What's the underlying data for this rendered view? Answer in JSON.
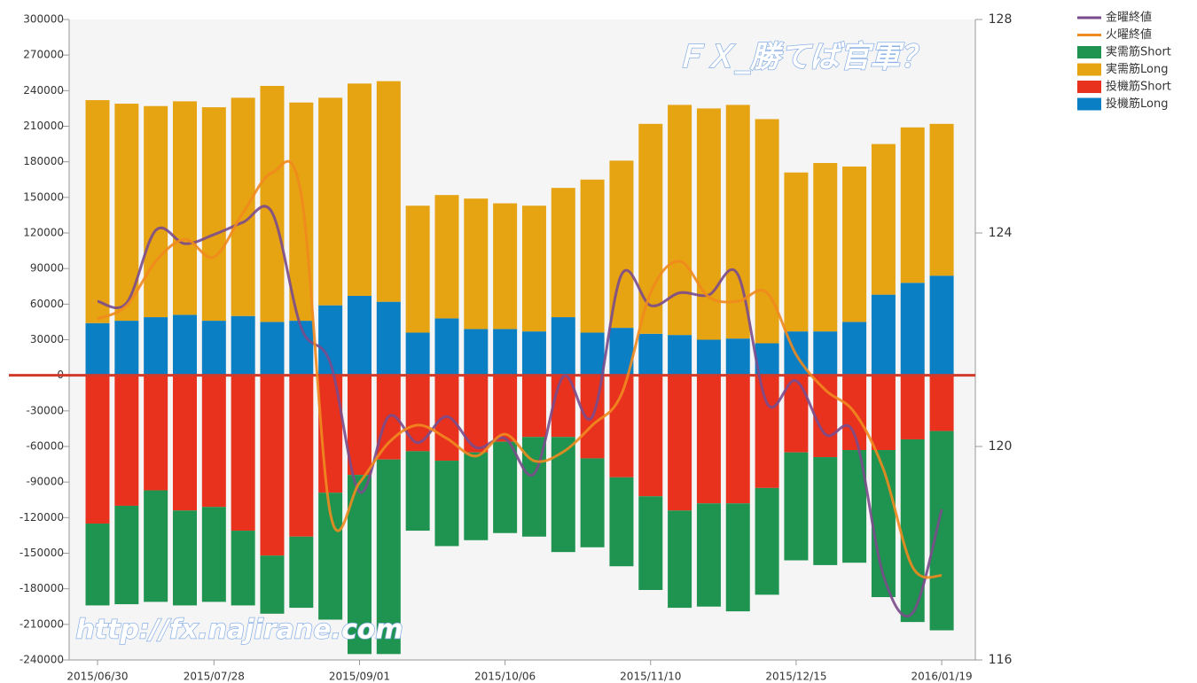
{
  "chart_data": {
    "type": "bar",
    "annotations": [
      "ＦＸ_勝てば官軍？",
      "http://fx.najirane.com"
    ],
    "categories": [
      "2015/06/30",
      null,
      null,
      null,
      "2015/07/28",
      null,
      null,
      null,
      null,
      "2015/09/01",
      null,
      null,
      null,
      null,
      "2015/10/06",
      null,
      null,
      null,
      null,
      "2015/11/10",
      null,
      null,
      null,
      null,
      "2015/12/15",
      null,
      null,
      null,
      null,
      "2016/01/19"
    ],
    "ylim": [
      -240000,
      300000
    ],
    "yticks": [
      -240000,
      -210000,
      -180000,
      -150000,
      -120000,
      -90000,
      -60000,
      -30000,
      0,
      30000,
      60000,
      90000,
      120000,
      150000,
      180000,
      210000,
      240000,
      270000,
      300000
    ],
    "y2lim": [
      116,
      128
    ],
    "y2ticks": [
      116,
      120,
      124,
      128
    ],
    "grid": false,
    "legend": "top-right",
    "series": [
      {
        "name": "金曜終値",
        "type": "line",
        "axis": "y2",
        "color": "#7a4b8c",
        "values": [
          122.72,
          122.69,
          124.05,
          123.8,
          123.97,
          124.2,
          124.38,
          122.22,
          121.56,
          119.15,
          120.56,
          120.07,
          120.56,
          119.98,
          120.15,
          119.49,
          121.31,
          120.56,
          123.22,
          122.64,
          122.88,
          122.84,
          123.22,
          120.81,
          121.23,
          120.23,
          120.23,
          117.58,
          116.88,
          118.82
        ]
      },
      {
        "name": "火曜終値",
        "type": "line",
        "axis": "y2",
        "color": "#f08a1e",
        "values": [
          122.39,
          122.64,
          123.47,
          123.88,
          123.55,
          124.38,
          125.13,
          124.71,
          118.74,
          119.32,
          120.07,
          120.4,
          120.15,
          119.82,
          120.23,
          119.73,
          119.9,
          120.4,
          120.98,
          122.88,
          123.47,
          122.8,
          122.72,
          122.88,
          121.72,
          121.06,
          120.64,
          119.57,
          117.74,
          117.58
        ]
      },
      {
        "name": "実需筋Short",
        "type": "bar",
        "color": "#1e9450",
        "values": [
          -69000,
          -83000,
          -94000,
          -80000,
          -80000,
          -63000,
          -49000,
          -60000,
          -107000,
          -151000,
          -164000,
          -67000,
          -72000,
          -74000,
          -77000,
          -84000,
          -97000,
          -75000,
          -75000,
          -79000,
          -82000,
          -87000,
          -91000,
          -90000,
          -91000,
          -91000,
          -95000,
          -124000,
          -154000,
          -168000
        ]
      },
      {
        "name": "実需筋Long",
        "type": "bar",
        "color": "#e6a312",
        "values": [
          188000,
          183000,
          178000,
          180000,
          180000,
          184000,
          199000,
          184000,
          175000,
          179000,
          186000,
          107000,
          104000,
          110000,
          106000,
          106000,
          109000,
          129000,
          141000,
          177000,
          194000,
          195000,
          197000,
          189000,
          134000,
          142000,
          131000,
          127000,
          131000,
          128000
        ]
      },
      {
        "name": "投機筋Short",
        "type": "bar",
        "color": "#e8321e",
        "values": [
          -125000,
          -110000,
          -97000,
          -114000,
          -111000,
          -131000,
          -152000,
          -136000,
          -99000,
          -84000,
          -71000,
          -64000,
          -72000,
          -65000,
          -56000,
          -52000,
          -52000,
          -70000,
          -86000,
          -102000,
          -114000,
          -108000,
          -108000,
          -95000,
          -65000,
          -69000,
          -63000,
          -63000,
          -54000,
          -47000
        ]
      },
      {
        "name": "投機筋Long",
        "type": "bar",
        "color": "#0a7fc4",
        "values": [
          44000,
          46000,
          49000,
          51000,
          46000,
          50000,
          45000,
          46000,
          59000,
          67000,
          62000,
          36000,
          48000,
          39000,
          39000,
          37000,
          49000,
          36000,
          40000,
          35000,
          34000,
          30000,
          31000,
          27000,
          37000,
          37000,
          45000,
          68000,
          78000,
          84000
        ]
      }
    ]
  }
}
